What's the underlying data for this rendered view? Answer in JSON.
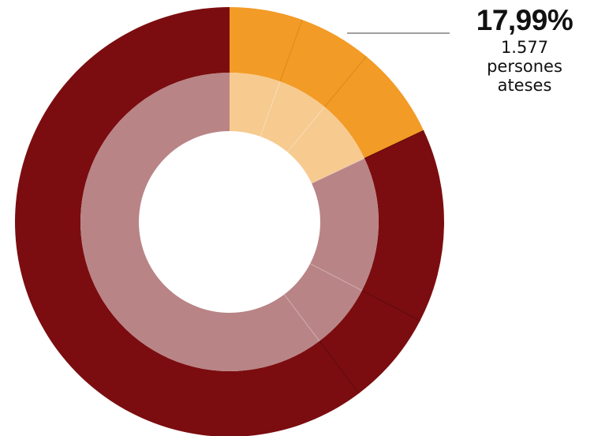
{
  "callout": {
    "value": "17,99%",
    "line1": "1.577",
    "line2": "persones",
    "line3": "ateses"
  },
  "colors": {
    "highlight_outer": "#F29B26",
    "highlight_inner": "#F7CA8F",
    "rest_outer": "#7B0D10",
    "rest_inner": "#B98486",
    "separator": "#5E0A0C",
    "leader_line": "#A0A0A0"
  },
  "chart_data": {
    "type": "donut",
    "title": "",
    "rings": [
      {
        "ring": "inner",
        "segments": [
          {
            "value": 17.99,
            "group": "highlight",
            "color": "#F7CA8F"
          },
          {
            "value": 82.01,
            "group": "rest",
            "color": "#B98486"
          }
        ]
      },
      {
        "ring": "outer",
        "segments": [
          {
            "value": 5.5,
            "group": "highlight",
            "color": "#F29B26"
          },
          {
            "value": 5.5,
            "group": "highlight",
            "color": "#F29B26"
          },
          {
            "value": 7.0,
            "group": "highlight",
            "color": "#F29B26"
          },
          {
            "value": 14.6,
            "group": "rest",
            "color": "#7B0D10"
          },
          {
            "value": 7.1,
            "group": "rest",
            "color": "#7B0D10"
          },
          {
            "value": 60.3,
            "group": "rest",
            "color": "#7B0D10"
          }
        ]
      }
    ],
    "annotations": [
      {
        "text": "17,99%",
        "subtext": "1.577 persones ateses",
        "target": "highlight"
      }
    ]
  }
}
